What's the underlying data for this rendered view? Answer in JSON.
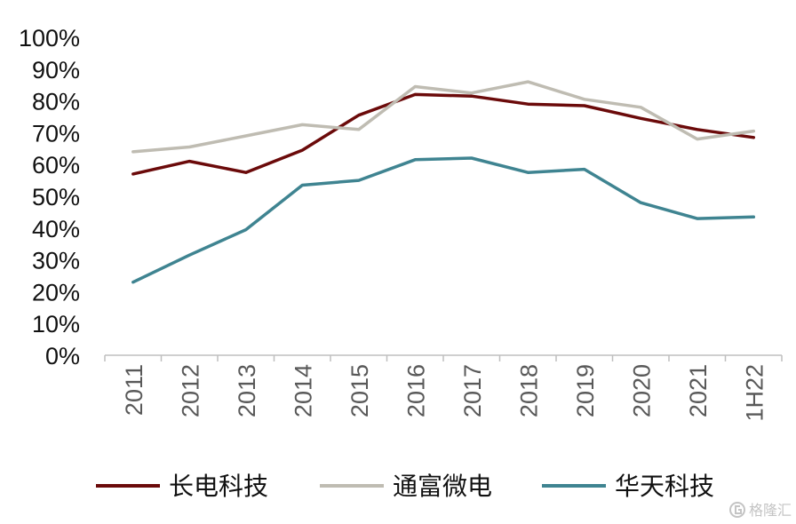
{
  "chart_data": {
    "type": "line",
    "title": "",
    "xlabel": "",
    "ylabel": "",
    "categories": [
      "2011",
      "2012",
      "2013",
      "2014",
      "2015",
      "2016",
      "2017",
      "2018",
      "2019",
      "2020",
      "2021",
      "1H22"
    ],
    "y_ticks": [
      "0%",
      "10%",
      "20%",
      "30%",
      "40%",
      "50%",
      "60%",
      "70%",
      "80%",
      "90%",
      "100%"
    ],
    "ylim": [
      0,
      100
    ],
    "grid": false,
    "legend_position": "bottom",
    "series": [
      {
        "name": "长电科技",
        "color": "#6b0a0a",
        "values": [
          57,
          61,
          57.5,
          64.5,
          75.5,
          82,
          81.5,
          79,
          78.5,
          74.5,
          71,
          68.5
        ]
      },
      {
        "name": "通富微电",
        "color": "#bfbcb2",
        "values": [
          64,
          65.5,
          69,
          72.5,
          71,
          84.5,
          82.5,
          86,
          80.5,
          78,
          68,
          70.5
        ]
      },
      {
        "name": "华天科技",
        "color": "#3f8491",
        "values": [
          23,
          31.5,
          39.5,
          53.5,
          55,
          61.5,
          62,
          57.5,
          58.5,
          48,
          43,
          43.5
        ]
      }
    ]
  },
  "watermark": {
    "text": "格隆汇",
    "icon": "glh-logo-icon"
  }
}
